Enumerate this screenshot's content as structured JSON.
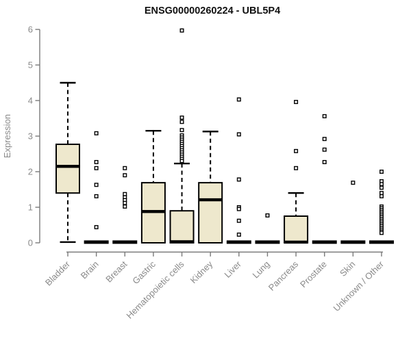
{
  "chart_data": {
    "type": "boxplot",
    "title": "ENSG00000260224 - UBL5P4",
    "ylabel": "Expression",
    "xlabel": "",
    "ylim": [
      0,
      6
    ],
    "yticks": [
      0,
      1,
      2,
      3,
      4,
      5,
      6
    ],
    "grid": false,
    "legend": null,
    "box_fill_color": "#EEE8CD",
    "box_stroke_color": "#000000",
    "axis_color": "#7a7a7a",
    "label_color": "#8a8a8a",
    "title_color": "#111111",
    "outlier_fill_color": "#ffffff",
    "categories": [
      "Bladder",
      "Brain",
      "Breast",
      "Gastric",
      "Hematopoietic cells",
      "Kidney",
      "Liver",
      "Lung",
      "Pancreas",
      "Prostate",
      "Skin",
      "Unknown / Other"
    ],
    "series": [
      {
        "category": "Bladder",
        "whisker_low": 0.02,
        "q1": 1.4,
        "median": 2.15,
        "q3": 2.77,
        "whisker_high": 4.5,
        "outliers": []
      },
      {
        "category": "Brain",
        "whisker_low": 0,
        "q1": 0,
        "median": 0.02,
        "q3": 0,
        "whisker_high": 0,
        "outliers": [
          3.08,
          2.27,
          2.1,
          1.63,
          1.31,
          0.44
        ]
      },
      {
        "category": "Breast",
        "whisker_low": 0,
        "q1": 0,
        "median": 0.02,
        "q3": 0,
        "whisker_high": 0,
        "outliers": [
          2.1,
          1.9,
          1.37,
          1.28,
          1.2,
          1.12,
          1.02
        ]
      },
      {
        "category": "Gastric",
        "whisker_low": 0,
        "q1": 0,
        "median": 0.88,
        "q3": 1.69,
        "whisker_high": 3.15,
        "outliers": []
      },
      {
        "category": "Hematopoietic cells",
        "whisker_low": 0,
        "q1": 0,
        "median": 0.03,
        "q3": 0.9,
        "whisker_high": 2.23,
        "outliers": [
          5.97,
          3.52,
          3.4,
          3.17,
          3.02,
          2.96,
          2.9,
          2.84,
          2.78,
          2.72,
          2.66,
          2.6,
          2.54,
          2.48,
          2.42,
          2.36,
          2.3
        ]
      },
      {
        "category": "Kidney",
        "whisker_low": 0,
        "q1": 0,
        "median": 1.21,
        "q3": 1.69,
        "whisker_high": 3.13,
        "outliers": []
      },
      {
        "category": "Liver",
        "whisker_low": 0,
        "q1": 0,
        "median": 0.02,
        "q3": 0,
        "whisker_high": 0,
        "outliers": [
          4.03,
          3.05,
          1.78,
          1.0,
          0.95,
          0.62,
          0.23
        ]
      },
      {
        "category": "Lung",
        "whisker_low": 0,
        "q1": 0,
        "median": 0.02,
        "q3": 0,
        "whisker_high": 0,
        "outliers": [
          0.77
        ]
      },
      {
        "category": "Pancreas",
        "whisker_low": 0,
        "q1": 0,
        "median": 0.02,
        "q3": 0.75,
        "whisker_high": 1.4,
        "outliers": [
          3.96,
          2.58,
          2.1
        ]
      },
      {
        "category": "Prostate",
        "whisker_low": 0,
        "q1": 0,
        "median": 0.02,
        "q3": 0,
        "whisker_high": 0,
        "outliers": [
          3.56,
          2.92,
          2.62,
          2.27
        ]
      },
      {
        "category": "Skin",
        "whisker_low": 0,
        "q1": 0,
        "median": 0.02,
        "q3": 0,
        "whisker_high": 0,
        "outliers": [
          1.69
        ]
      },
      {
        "category": "Unknown / Other",
        "whisker_low": 0,
        "q1": 0,
        "median": 0.02,
        "q3": 0,
        "whisker_high": 0,
        "outliers": [
          2.0,
          1.73,
          1.65,
          1.55,
          1.4,
          1.31,
          1.02,
          0.97,
          0.92,
          0.87,
          0.82,
          0.77,
          0.72,
          0.67,
          0.62,
          0.57,
          0.52,
          0.47,
          0.42,
          0.37,
          0.32,
          0.28
        ]
      }
    ]
  }
}
